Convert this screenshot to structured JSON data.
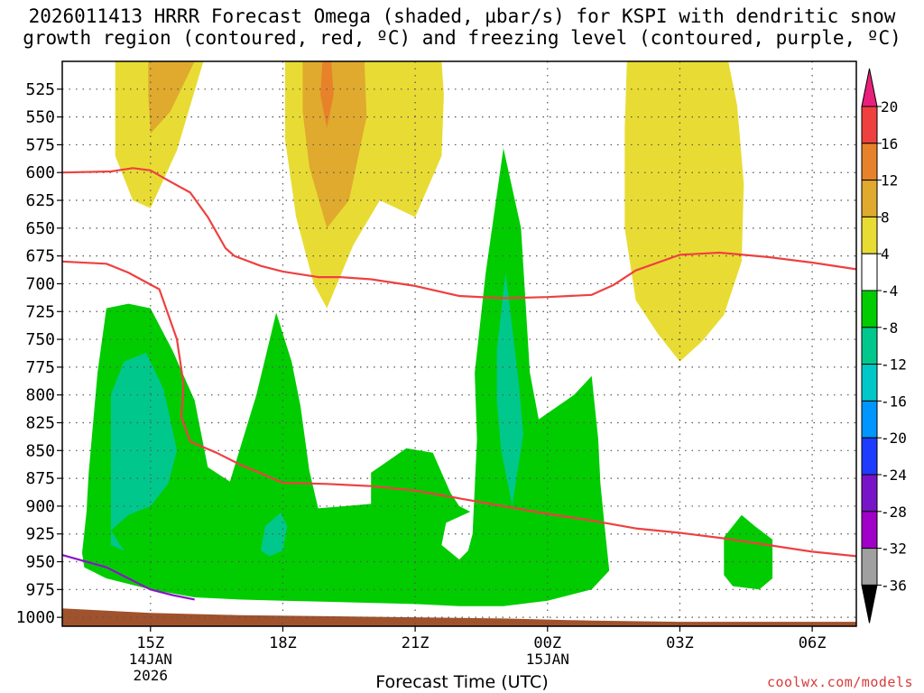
{
  "title_line1": "2026011413 HRRR Forecast Omega (shaded, µbar/s) for KSPI with dendritic snow",
  "title_line2": "growth region (contoured, red, ºC) and freezing level (contoured, purple, ºC)",
  "watermark": "coolwx.com/models",
  "chart_data": {
    "type": "heatmap",
    "title": "2026011413 HRRR Forecast Omega (shaded, µbar/s) for KSPI with dendritic snow growth region (contoured, red, ºC) and freezing level (contoured, purple, ºC)",
    "xlabel": "Forecast Time (UTC)",
    "ylabel": "",
    "x_unit": "hours after 2026-01-14 13Z",
    "xlim": [
      0,
      18
    ],
    "y_axis": "pressure (hPa), inverted",
    "ylim": [
      1008,
      500
    ],
    "y_ticks": [
      525,
      550,
      575,
      600,
      625,
      650,
      675,
      700,
      725,
      750,
      775,
      800,
      825,
      850,
      875,
      900,
      925,
      950,
      975,
      1000
    ],
    "x_ticks": [
      {
        "x": 2,
        "label": "15Z",
        "sublabels": [
          "14JAN",
          "2026"
        ]
      },
      {
        "x": 5,
        "label": "18Z",
        "sublabels": []
      },
      {
        "x": 8,
        "label": "21Z",
        "sublabels": []
      },
      {
        "x": 11,
        "label": "00Z",
        "sublabels": [
          "15JAN"
        ]
      },
      {
        "x": 14,
        "label": "03Z",
        "sublabels": []
      },
      {
        "x": 17,
        "label": "06Z",
        "sublabels": []
      }
    ],
    "grid": true,
    "colorbar": {
      "labels": [
        "20",
        "16",
        "12",
        "8",
        "4",
        "-4",
        "-8",
        "-12",
        "-16",
        "-20",
        "-24",
        "-28",
        "-32",
        "-36"
      ],
      "colors": [
        "#ef4040",
        "#e8822a",
        "#e0aa2e",
        "#e8dc34",
        "#ffffff",
        "#00cc00",
        "#00c88c",
        "#00c8c8",
        "#0096ff",
        "#1e3cff",
        "#7814c8",
        "#a000c8",
        "#a0a0a0"
      ],
      "top_arrow_color": "#e8207a",
      "bottom_arrow_color": "#000000"
    },
    "regions": [
      {
        "name": "ascent-yellow-left",
        "level": "4",
        "color": "#e8dc34",
        "points": [
          [
            1.2,
            500
          ],
          [
            3.2,
            500
          ],
          [
            2.6,
            580
          ],
          [
            2.0,
            632
          ],
          [
            1.6,
            625
          ],
          [
            1.2,
            585
          ]
        ]
      },
      {
        "name": "ascent-orange-left",
        "level": "8",
        "color": "#e0aa2e",
        "points": [
          [
            1.95,
            500
          ],
          [
            3.0,
            500
          ],
          [
            2.45,
            545
          ],
          [
            2.0,
            565
          ],
          [
            1.95,
            530
          ]
        ]
      },
      {
        "name": "ascent-yellow-center",
        "level": "4",
        "color": "#e8dc34",
        "points": [
          [
            5.05,
            500
          ],
          [
            8.6,
            500
          ],
          [
            8.65,
            530
          ],
          [
            8.6,
            585
          ],
          [
            8.0,
            640
          ],
          [
            7.2,
            625
          ],
          [
            6.6,
            665
          ],
          [
            6.0,
            722
          ],
          [
            5.7,
            700
          ],
          [
            5.3,
            640
          ],
          [
            5.05,
            570
          ]
        ]
      },
      {
        "name": "ascent-orange-center",
        "level": "8",
        "color": "#e0aa2e",
        "points": [
          [
            5.45,
            500
          ],
          [
            6.85,
            500
          ],
          [
            6.9,
            550
          ],
          [
            6.5,
            625
          ],
          [
            6.0,
            650
          ],
          [
            5.6,
            595
          ],
          [
            5.45,
            545
          ]
        ]
      },
      {
        "name": "ascent-deep-orange-center",
        "level": "12",
        "color": "#e8822a",
        "points": [
          [
            5.9,
            500
          ],
          [
            6.1,
            500
          ],
          [
            6.15,
            530
          ],
          [
            6.0,
            560
          ],
          [
            5.85,
            530
          ]
        ]
      },
      {
        "name": "ascent-yellow-right",
        "level": "4",
        "color": "#e8dc34",
        "points": [
          [
            12.8,
            500
          ],
          [
            15.1,
            500
          ],
          [
            15.3,
            540
          ],
          [
            15.45,
            610
          ],
          [
            15.4,
            680
          ],
          [
            15.0,
            728
          ],
          [
            14.5,
            752
          ],
          [
            14.0,
            770
          ],
          [
            13.5,
            745
          ],
          [
            13.0,
            715
          ],
          [
            12.75,
            650
          ],
          [
            12.75,
            560
          ]
        ]
      },
      {
        "name": "descent-green-left",
        "level": "-4",
        "color": "#00cc00",
        "points": [
          [
            0.45,
            942
          ],
          [
            0.55,
            905
          ],
          [
            0.6,
            870
          ],
          [
            0.8,
            780
          ],
          [
            1.0,
            722
          ],
          [
            1.5,
            718
          ],
          [
            2.0,
            722
          ],
          [
            2.5,
            760
          ],
          [
            3.0,
            805
          ],
          [
            3.3,
            865
          ],
          [
            3.8,
            878
          ],
          [
            4.4,
            800
          ],
          [
            4.85,
            726
          ],
          [
            5.2,
            770
          ],
          [
            5.4,
            810
          ],
          [
            5.6,
            868
          ],
          [
            5.8,
            902
          ],
          [
            7.0,
            898
          ],
          [
            7.0,
            870
          ],
          [
            7.8,
            848
          ],
          [
            8.4,
            852
          ],
          [
            8.8,
            888
          ],
          [
            9.0,
            900
          ],
          [
            9.25,
            905
          ],
          [
            8.7,
            915
          ],
          [
            8.6,
            935
          ],
          [
            9.0,
            948
          ],
          [
            9.2,
            940
          ],
          [
            9.3,
            925
          ],
          [
            9.4,
            840
          ],
          [
            9.35,
            780
          ],
          [
            9.6,
            690
          ],
          [
            10.0,
            578
          ],
          [
            10.4,
            650
          ],
          [
            10.6,
            780
          ],
          [
            10.8,
            822
          ],
          [
            11.6,
            800
          ],
          [
            12.0,
            783
          ],
          [
            12.15,
            840
          ],
          [
            12.2,
            880
          ],
          [
            12.3,
            920
          ],
          [
            12.4,
            958
          ],
          [
            12.0,
            975
          ],
          [
            11.0,
            985
          ],
          [
            10.0,
            990
          ],
          [
            9.0,
            990
          ],
          [
            8.0,
            988
          ],
          [
            7.0,
            987
          ],
          [
            6.0,
            986
          ],
          [
            5.0,
            985
          ],
          [
            4.0,
            984
          ],
          [
            3.0,
            982
          ],
          [
            2.0,
            975
          ],
          [
            1.0,
            965
          ],
          [
            0.5,
            955
          ]
        ]
      },
      {
        "name": "descent-green-small-right",
        "level": "-4",
        "color": "#00cc00",
        "points": [
          [
            15.0,
            928
          ],
          [
            15.4,
            908
          ],
          [
            15.7,
            918
          ],
          [
            16.1,
            930
          ],
          [
            16.1,
            965
          ],
          [
            15.8,
            975
          ],
          [
            15.2,
            972
          ],
          [
            15.0,
            962
          ]
        ]
      },
      {
        "name": "descent-teal-left",
        "level": "-8",
        "color": "#00c88c",
        "points": [
          [
            1.1,
            935
          ],
          [
            1.1,
            860
          ],
          [
            1.1,
            800
          ],
          [
            1.4,
            770
          ],
          [
            1.9,
            762
          ],
          [
            2.3,
            795
          ],
          [
            2.6,
            850
          ],
          [
            2.4,
            880
          ],
          [
            2.0,
            900
          ],
          [
            1.5,
            908
          ],
          [
            1.1,
            922
          ],
          [
            1.4,
            940
          ]
        ]
      },
      {
        "name": "descent-teal-small",
        "level": "-8",
        "color": "#00c88c",
        "points": [
          [
            4.5,
            940
          ],
          [
            4.6,
            918
          ],
          [
            4.95,
            906
          ],
          [
            5.1,
            918
          ],
          [
            5.0,
            940
          ],
          [
            4.7,
            945
          ]
        ]
      },
      {
        "name": "descent-teal-center",
        "level": "-8",
        "color": "#00c88c",
        "points": [
          [
            9.85,
            805
          ],
          [
            9.85,
            760
          ],
          [
            10.05,
            690
          ],
          [
            10.2,
            740
          ],
          [
            10.35,
            790
          ],
          [
            10.45,
            835
          ],
          [
            10.2,
            900
          ],
          [
            9.95,
            850
          ]
        ]
      }
    ],
    "dgz_contours": [
      {
        "name": "dgz-contour-upper",
        "color": "#ef4040",
        "points": [
          [
            0,
            600
          ],
          [
            1.1,
            599
          ],
          [
            1.6,
            596
          ],
          [
            2.0,
            598
          ],
          [
            2.4,
            607
          ],
          [
            2.9,
            618
          ],
          [
            3.3,
            640
          ],
          [
            3.7,
            668
          ],
          [
            3.9,
            675
          ],
          [
            4.5,
            684
          ],
          [
            5.0,
            689
          ],
          [
            5.8,
            694
          ],
          [
            6.3,
            694
          ],
          [
            7.0,
            696
          ],
          [
            8.0,
            702
          ],
          [
            9.0,
            711
          ],
          [
            10.0,
            713
          ],
          [
            11.0,
            712
          ],
          [
            12.0,
            710
          ],
          [
            12.5,
            701
          ],
          [
            13.0,
            688
          ],
          [
            14.0,
            674
          ],
          [
            14.9,
            672
          ],
          [
            16.0,
            676
          ],
          [
            17.0,
            681
          ],
          [
            18.0,
            687
          ]
        ]
      },
      {
        "name": "dgz-contour-lower",
        "color": "#ef4040",
        "points": [
          [
            0,
            680
          ],
          [
            1.0,
            682
          ],
          [
            1.5,
            690
          ],
          [
            2.2,
            705
          ],
          [
            2.6,
            750
          ],
          [
            2.75,
            790
          ],
          [
            2.7,
            820
          ],
          [
            2.9,
            842
          ],
          [
            3.5,
            852
          ],
          [
            4.0,
            862
          ],
          [
            5.0,
            879
          ],
          [
            6.0,
            880
          ],
          [
            7.0,
            882
          ],
          [
            8.0,
            886
          ],
          [
            9.0,
            893
          ],
          [
            10.0,
            900
          ],
          [
            11.0,
            907
          ],
          [
            12.0,
            913
          ],
          [
            13.0,
            920
          ],
          [
            14.0,
            924
          ],
          [
            15.0,
            929
          ],
          [
            16.0,
            935
          ],
          [
            17.0,
            941
          ],
          [
            18.0,
            945
          ]
        ]
      }
    ],
    "freezing_contours": [
      {
        "name": "freezing-level-contour",
        "color": "#8c14c8",
        "points": [
          [
            0,
            944
          ],
          [
            1.0,
            955
          ],
          [
            1.5,
            965
          ],
          [
            2.0,
            975
          ],
          [
            2.5,
            980
          ],
          [
            3.0,
            984
          ]
        ]
      }
    ],
    "terrain": {
      "color": "#a0522d",
      "top": [
        [
          0,
          992
        ],
        [
          2,
          996
        ],
        [
          4,
          998
        ],
        [
          6,
          999
        ],
        [
          8,
          1000
        ],
        [
          10,
          1001
        ],
        [
          12,
          1003
        ],
        [
          14,
          1004
        ],
        [
          16,
          1004
        ],
        [
          18,
          1004
        ]
      ]
    }
  }
}
